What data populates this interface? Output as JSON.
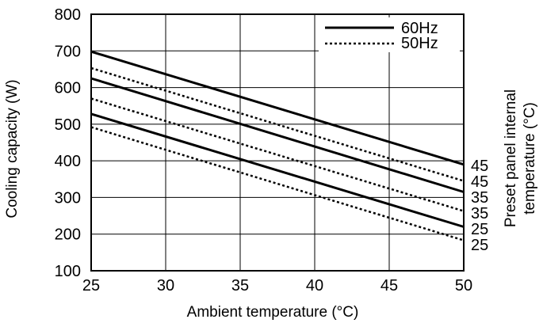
{
  "chart_data": {
    "type": "line",
    "xlabel": "Ambient temperature (°C)",
    "ylabel": "Cooling capacity (W)",
    "right_label_line1": "Preset panel internal",
    "right_label_line2": "temperature (°C)",
    "xlim": [
      25,
      50
    ],
    "ylim": [
      100,
      800
    ],
    "xticks": [
      "25",
      "30",
      "35",
      "40",
      "45",
      "50"
    ],
    "yticks": [
      "100",
      "200",
      "300",
      "400",
      "500",
      "600",
      "700",
      "800"
    ],
    "grid": true,
    "legend": {
      "placement": "top-right",
      "entries": [
        {
          "label": "60Hz",
          "style": "solid"
        },
        {
          "label": "50Hz",
          "style": "dashed"
        }
      ]
    },
    "series": [
      {
        "label": "45",
        "style": "solid",
        "x": [
          25,
          50
        ],
        "y": [
          698,
          390
        ]
      },
      {
        "label": "45",
        "style": "dashed",
        "x": [
          25,
          50
        ],
        "y": [
          653,
          345
        ]
      },
      {
        "label": "35",
        "style": "solid",
        "x": [
          25,
          50
        ],
        "y": [
          625,
          315
        ]
      },
      {
        "label": "35",
        "style": "dashed",
        "x": [
          25,
          50
        ],
        "y": [
          570,
          263
        ]
      },
      {
        "label": "25",
        "style": "solid",
        "x": [
          25,
          50
        ],
        "y": [
          528,
          220
        ]
      },
      {
        "label": "25",
        "style": "dashed",
        "x": [
          25,
          50
        ],
        "y": [
          492,
          183
        ]
      }
    ]
  }
}
